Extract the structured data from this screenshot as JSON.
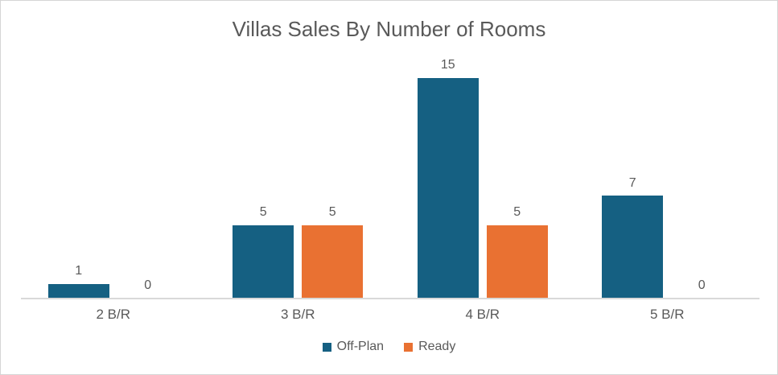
{
  "chart_data": {
    "type": "bar",
    "title": "Villas Sales By Number of Rooms",
    "categories": [
      "2 B/R",
      "3 B/R",
      "4 B/R",
      "5 B/R"
    ],
    "series": [
      {
        "name": "Off-Plan",
        "color": "#156082",
        "values": [
          1,
          5,
          15,
          7
        ]
      },
      {
        "name": "Ready",
        "color": "#E97132",
        "values": [
          0,
          5,
          5,
          0
        ]
      }
    ],
    "ylim": [
      0,
      15
    ],
    "data_labels": true,
    "grid": false,
    "legend_position": "bottom",
    "y_axis_visible": false
  },
  "colors": {
    "text": "#595959",
    "axis_line": "#D9D9D9",
    "border": "#D5D5D5",
    "background": "#FFFFFF"
  }
}
